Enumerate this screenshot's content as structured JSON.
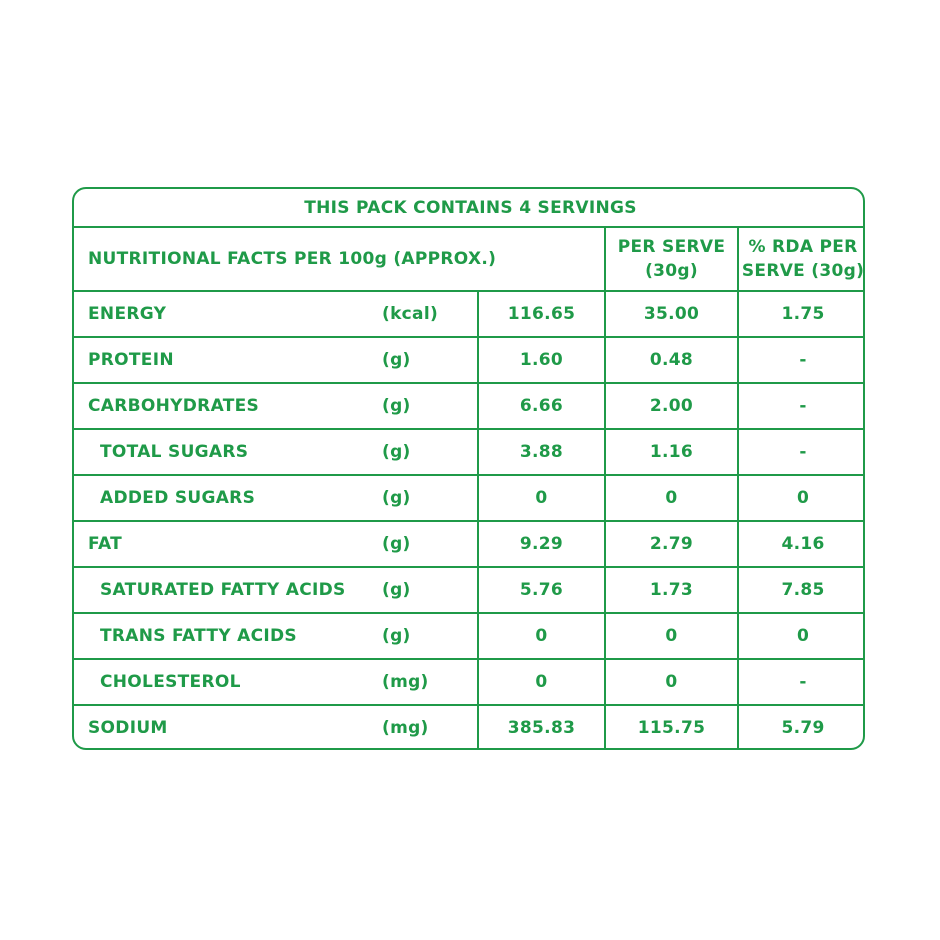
{
  "table": {
    "title": "THIS PACK CONTAINS 4 SERVINGS",
    "header": {
      "main": "NUTRITIONAL FACTS PER 100g (APPROX.)",
      "per_serve": "PER SERVE (30g)",
      "rda": "% RDA PER SERVE (30g)"
    },
    "rows": [
      {
        "label": "ENERGY",
        "unit": "(kcal)",
        "per100": "116.65",
        "per_serve": "35.00",
        "rda": "1.75"
      },
      {
        "label": "PROTEIN",
        "unit": "(g)",
        "per100": "1.60",
        "per_serve": "0.48",
        "rda": "-"
      },
      {
        "label": "CARBOHYDRATES",
        "unit": "(g)",
        "per100": "6.66",
        "per_serve": "2.00",
        "rda": "-"
      },
      {
        "label": "TOTAL SUGARS",
        "unit": "(g)",
        "per100": "3.88",
        "per_serve": "1.16",
        "rda": "-"
      },
      {
        "label": "ADDED SUGARS",
        "unit": "(g)",
        "per100": "0",
        "per_serve": "0",
        "rda": "0"
      },
      {
        "label": "FAT",
        "unit": "(g)",
        "per100": "9.29",
        "per_serve": "2.79",
        "rda": "4.16"
      },
      {
        "label": "SATURATED FATTY ACIDS",
        "unit": "(g)",
        "per100": "5.76",
        "per_serve": "1.73",
        "rda": "7.85"
      },
      {
        "label": "TRANS FATTY ACIDS",
        "unit": "(g)",
        "per100": "0",
        "per_serve": "0",
        "rda": "0"
      },
      {
        "label": "CHOLESTEROL",
        "unit": "(mg)",
        "per100": "0",
        "per_serve": "0",
        "rda": "-"
      },
      {
        "label": "SODIUM",
        "unit": "(mg)",
        "per100": "385.83",
        "per_serve": "115.75",
        "rda": "5.79"
      }
    ]
  },
  "colors": {
    "text": "#1f9a48",
    "border": "#1f9a48",
    "background": "#ffffff"
  }
}
